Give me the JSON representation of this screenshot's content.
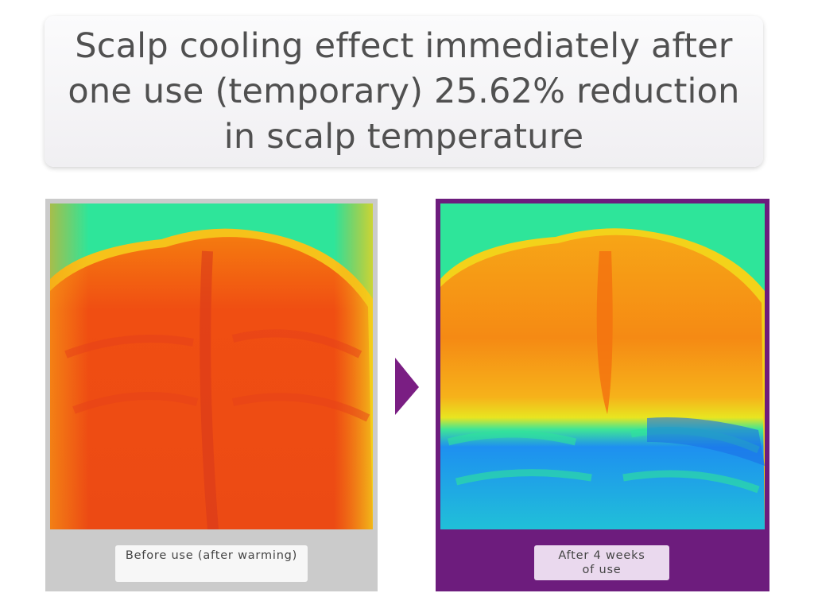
{
  "header": {
    "title": "Scalp cooling effect immediately after one use (temporary) 25.62% reduction in scalp temperature"
  },
  "panels": [
    {
      "caption": "Before use (after warming)"
    },
    {
      "caption": "After 4 weeks of use"
    }
  ]
}
